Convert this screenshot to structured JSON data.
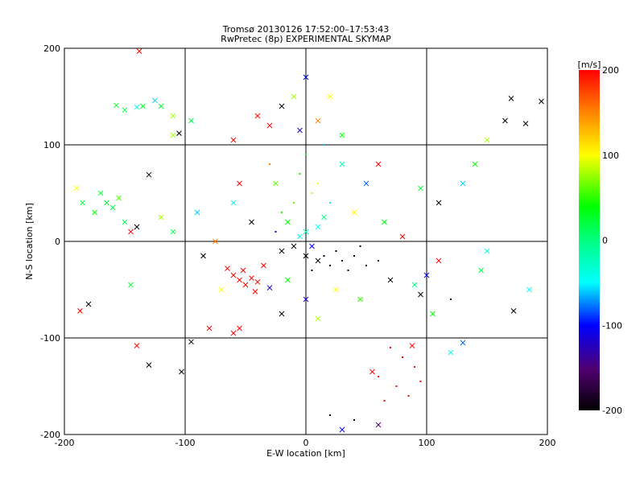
{
  "chart_data": {
    "type": "scatter",
    "title": "Tromsø 20130126 17:52:00–17:53:43",
    "subtitle": "RwPretec (8p) EXPERIMENTAL SKYMAP",
    "xlabel": "E-W location [km]",
    "ylabel": "N-S location [km]",
    "xlim": [
      -200,
      200
    ],
    "ylim": [
      -200,
      200
    ],
    "xticks": [
      -200,
      -100,
      0,
      100,
      200
    ],
    "yticks": [
      -200,
      -100,
      0,
      100,
      200
    ],
    "grid": true,
    "colorbar": {
      "label": "[m/s]",
      "range": [
        -200,
        200
      ],
      "ticks": [
        200,
        100,
        0,
        -100,
        -200
      ]
    },
    "points_note_fields": [
      "x_km",
      "y_km",
      "velocity_m_s",
      "marker"
    ],
    "points": [
      [
        -157,
        141,
        30,
        "x"
      ],
      [
        -150,
        136,
        20,
        "x"
      ],
      [
        -140,
        139,
        -40,
        "x"
      ],
      [
        -135,
        140,
        30,
        "x"
      ],
      [
        -125,
        146,
        -60,
        "x"
      ],
      [
        -120,
        140,
        20,
        "x"
      ],
      [
        -110,
        130,
        80,
        "x"
      ],
      [
        -95,
        125,
        20,
        "x"
      ],
      [
        -110,
        110,
        80,
        "x"
      ],
      [
        -105,
        112,
        -200,
        "x"
      ],
      [
        -170,
        50,
        20,
        "x"
      ],
      [
        -165,
        40,
        30,
        "x"
      ],
      [
        -160,
        35,
        20,
        "x"
      ],
      [
        -155,
        45,
        60,
        "x"
      ],
      [
        -175,
        30,
        40,
        "x"
      ],
      [
        -150,
        20,
        10,
        "x"
      ],
      [
        -145,
        10,
        200,
        "x"
      ],
      [
        -140,
        15,
        -200,
        "x"
      ],
      [
        -185,
        40,
        20,
        "x"
      ],
      [
        -190,
        55,
        100,
        "x"
      ],
      [
        -187,
        -72,
        200,
        "x"
      ],
      [
        -180,
        -65,
        -200,
        "x"
      ],
      [
        -140,
        -108,
        200,
        "x"
      ],
      [
        -130,
        -128,
        -200,
        "x"
      ],
      [
        -103,
        -135,
        -200,
        "x"
      ],
      [
        -95,
        -104,
        -200,
        "x"
      ],
      [
        -80,
        -90,
        200,
        "x"
      ],
      [
        -60,
        -95,
        200,
        "x"
      ],
      [
        -55,
        -90,
        200,
        "x"
      ],
      [
        -145,
        -45,
        20,
        "x"
      ],
      [
        -60,
        -35,
        200,
        "x"
      ],
      [
        -55,
        -40,
        200,
        "x"
      ],
      [
        -50,
        -45,
        200,
        "x"
      ],
      [
        -45,
        -38,
        200,
        "x"
      ],
      [
        -52,
        -30,
        200,
        "x"
      ],
      [
        -40,
        -42,
        190,
        "x"
      ],
      [
        -35,
        -25,
        200,
        "x"
      ],
      [
        -65,
        -28,
        200,
        "x"
      ],
      [
        -42,
        -52,
        200,
        "x"
      ],
      [
        -30,
        -48,
        -120,
        "x"
      ],
      [
        -20,
        -10,
        -200,
        "x"
      ],
      [
        -10,
        -5,
        -200,
        "x"
      ],
      [
        0,
        -15,
        -200,
        "x"
      ],
      [
        10,
        -20,
        -200,
        "x"
      ],
      [
        5,
        -5,
        -100,
        "x"
      ],
      [
        -5,
        5,
        -40,
        "x"
      ],
      [
        0,
        10,
        -20,
        "x"
      ],
      [
        10,
        15,
        -50,
        "x"
      ],
      [
        15,
        25,
        0,
        "x"
      ],
      [
        -15,
        20,
        40,
        "x"
      ],
      [
        20,
        -25,
        -200,
        "+"
      ],
      [
        30,
        -20,
        -200,
        "+"
      ],
      [
        40,
        -15,
        -200,
        "+"
      ],
      [
        25,
        -10,
        -200,
        "+"
      ],
      [
        35,
        -30,
        -200,
        "+"
      ],
      [
        50,
        -25,
        -200,
        "+"
      ],
      [
        60,
        -20,
        -200,
        "+"
      ],
      [
        45,
        -5,
        -200,
        "+"
      ],
      [
        15,
        -15,
        -200,
        "+"
      ],
      [
        5,
        -30,
        -200,
        "+"
      ],
      [
        -25,
        10,
        -100,
        "+"
      ],
      [
        -20,
        30,
        30,
        "+"
      ],
      [
        -10,
        40,
        60,
        "+"
      ],
      [
        5,
        50,
        80,
        "+"
      ],
      [
        10,
        60,
        100,
        "+"
      ],
      [
        -5,
        70,
        40,
        "+"
      ],
      [
        0,
        90,
        20,
        "+"
      ],
      [
        15,
        100,
        -60,
        "+"
      ],
      [
        -30,
        80,
        150,
        "+"
      ],
      [
        20,
        40,
        -40,
        "+"
      ],
      [
        -40,
        130,
        200,
        "x"
      ],
      [
        -30,
        120,
        200,
        "x"
      ],
      [
        -20,
        140,
        -200,
        "x"
      ],
      [
        -10,
        150,
        80,
        "x"
      ],
      [
        0,
        170,
        -100,
        "x"
      ],
      [
        10,
        125,
        150,
        "x"
      ],
      [
        20,
        150,
        100,
        "x"
      ],
      [
        -5,
        115,
        -120,
        "x"
      ],
      [
        30,
        110,
        40,
        "x"
      ],
      [
        -60,
        105,
        200,
        "x"
      ],
      [
        70,
        -110,
        200,
        "+"
      ],
      [
        80,
        -120,
        200,
        "+"
      ],
      [
        90,
        -130,
        200,
        "+"
      ],
      [
        60,
        -140,
        200,
        "+"
      ],
      [
        75,
        -150,
        200,
        "+"
      ],
      [
        85,
        -160,
        200,
        "+"
      ],
      [
        95,
        -145,
        200,
        "+"
      ],
      [
        65,
        -165,
        200,
        "+"
      ],
      [
        55,
        -135,
        200,
        "x"
      ],
      [
        88,
        -108,
        200,
        "x"
      ],
      [
        170,
        148,
        -200,
        "x"
      ],
      [
        165,
        125,
        -200,
        "x"
      ],
      [
        182,
        122,
        -200,
        "x"
      ],
      [
        195,
        145,
        -200,
        "x"
      ],
      [
        150,
        105,
        80,
        "x"
      ],
      [
        140,
        80,
        40,
        "x"
      ],
      [
        130,
        60,
        -60,
        "x"
      ],
      [
        145,
        -30,
        20,
        "x"
      ],
      [
        150,
        -10,
        -40,
        "x"
      ],
      [
        185,
        -50,
        -50,
        "x"
      ],
      [
        100,
        -35,
        -100,
        "x"
      ],
      [
        95,
        -55,
        -200,
        "x"
      ],
      [
        90,
        -45,
        0,
        "x"
      ],
      [
        70,
        -40,
        -200,
        "x"
      ],
      [
        110,
        -20,
        200,
        "x"
      ],
      [
        120,
        -60,
        -200,
        "+"
      ],
      [
        172,
        -72,
        -200,
        "x"
      ],
      [
        120,
        -115,
        -40,
        "x"
      ],
      [
        130,
        -105,
        -80,
        "x"
      ],
      [
        105,
        -75,
        40,
        "x"
      ],
      [
        -130,
        69,
        -200,
        "x"
      ],
      [
        -120,
        25,
        80,
        "x"
      ],
      [
        -110,
        10,
        20,
        "x"
      ],
      [
        -85,
        -15,
        -200,
        "x"
      ],
      [
        -70,
        -50,
        100,
        "x"
      ],
      [
        -90,
        30,
        -60,
        "x"
      ],
      [
        -75,
        0,
        150,
        "x"
      ],
      [
        50,
        60,
        -80,
        "x"
      ],
      [
        60,
        80,
        200,
        "x"
      ],
      [
        40,
        30,
        100,
        "x"
      ],
      [
        80,
        5,
        200,
        "x"
      ],
      [
        95,
        55,
        20,
        "x"
      ],
      [
        110,
        40,
        -200,
        "x"
      ],
      [
        -60,
        40,
        -40,
        "x"
      ],
      [
        -55,
        60,
        200,
        "x"
      ],
      [
        -45,
        20,
        -200,
        "x"
      ],
      [
        65,
        20,
        40,
        "x"
      ],
      [
        30,
        80,
        -20,
        "x"
      ],
      [
        -25,
        60,
        60,
        "x"
      ],
      [
        45,
        -60,
        50,
        "x"
      ],
      [
        10,
        -80,
        80,
        "x"
      ],
      [
        -20,
        -75,
        -200,
        "x"
      ],
      [
        0,
        -60,
        -120,
        "x"
      ],
      [
        25,
        -50,
        100,
        "x"
      ],
      [
        -15,
        -40,
        40,
        "x"
      ],
      [
        30,
        -195,
        -100,
        "x"
      ],
      [
        60,
        -190,
        -150,
        "x"
      ],
      [
        20,
        -180,
        -200,
        "+"
      ],
      [
        40,
        -185,
        -200,
        "+"
      ],
      [
        -138,
        197,
        200,
        "x"
      ]
    ]
  }
}
